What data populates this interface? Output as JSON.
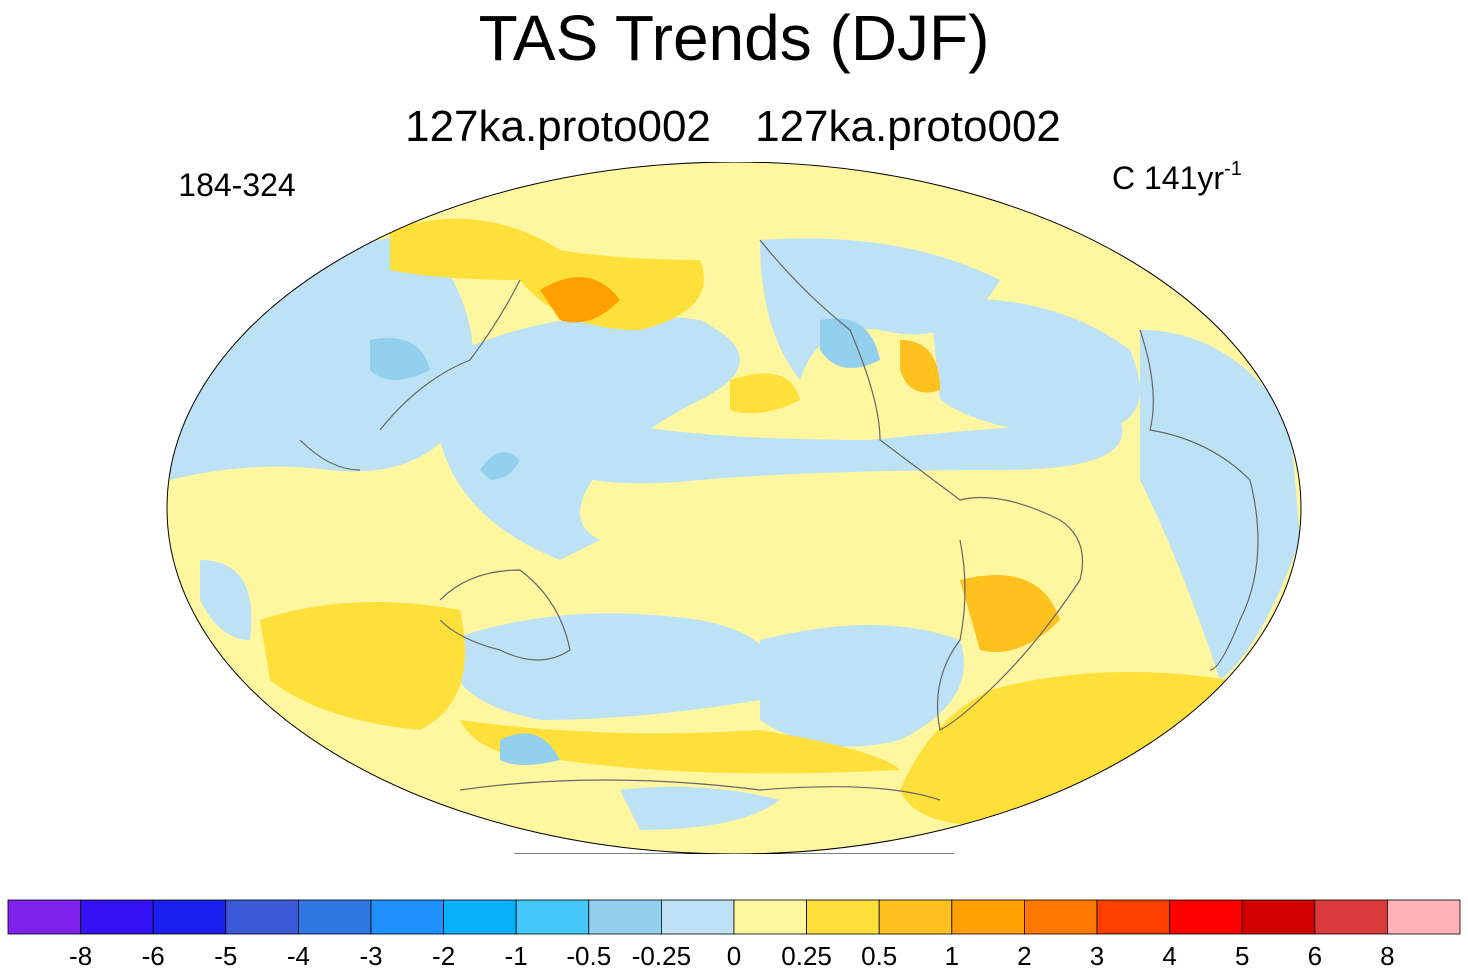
{
  "title": "TAS Trends (DJF)",
  "subtitles": [
    "127ka.proto002",
    "127ka.proto002"
  ],
  "left_label": "184-324",
  "right_label": {
    "text": "C 141yr",
    "superscript": "-1"
  },
  "colorbar": {
    "levels": [
      -8,
      -6,
      -5,
      -4,
      -3,
      -2,
      -1,
      -0.5,
      -0.25,
      0,
      0.25,
      0.5,
      1,
      2,
      3,
      4,
      5,
      6,
      8
    ],
    "colors": [
      "#7f22ee",
      "#3412f6",
      "#1b20ee",
      "#3a5ad8",
      "#2f78e4",
      "#1e90ff",
      "#06b2fc",
      "#44c6f6",
      "#92d0ee",
      "#bde2f5",
      "#fff7a0",
      "#ffe03a",
      "#ffc11e",
      "#ff9f00",
      "#ff7800",
      "#ff3f00",
      "#ff0000",
      "#d20000",
      "#db3a3c",
      "#ffb2b8"
    ]
  }
}
